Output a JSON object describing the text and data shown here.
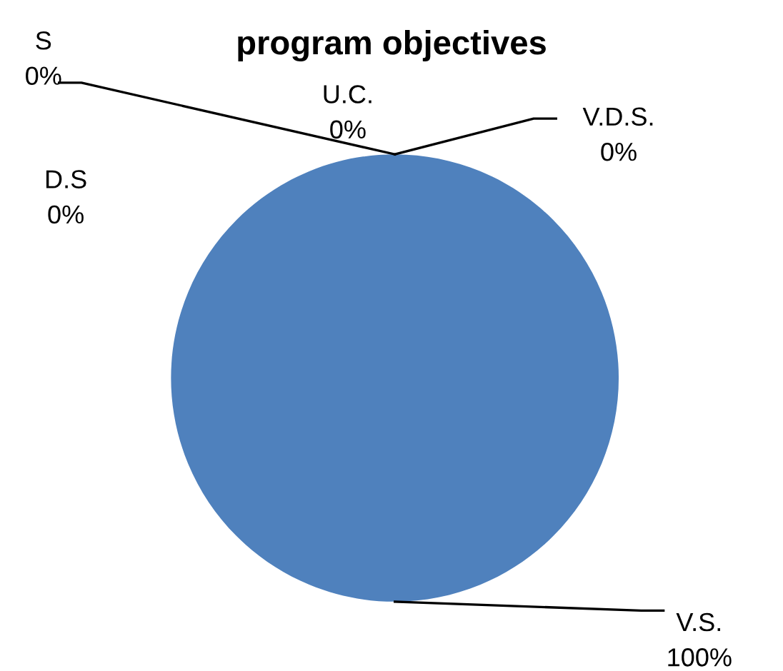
{
  "chart_data": {
    "type": "pie",
    "title": "program objectives",
    "categories": [
      "V.S.",
      "S",
      "U.C.",
      "D.S",
      "V.D.S."
    ],
    "values": [
      100,
      0,
      0,
      0,
      0
    ],
    "colors": [
      "#4f81bd",
      "#c0504d",
      "#9bbb59",
      "#8064a2",
      "#4bacc6"
    ],
    "value_labels": [
      "100%",
      "0%",
      "0%",
      "0%",
      "0%"
    ],
    "legend": false
  }
}
